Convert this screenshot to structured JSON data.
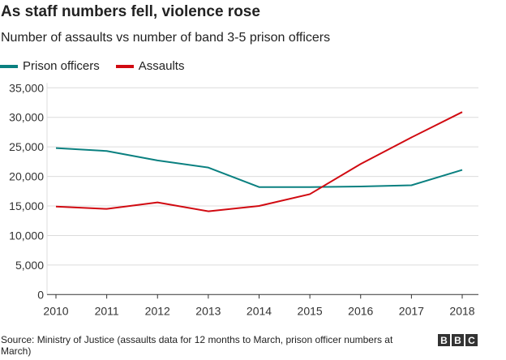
{
  "chart_data": {
    "type": "line",
    "title": "As staff numbers fell, violence rose",
    "subtitle": "Number of assaults vs number of band 3-5 prison officers",
    "x": [
      "2010",
      "2011",
      "2012",
      "2013",
      "2014",
      "2015",
      "2016",
      "2017",
      "2018"
    ],
    "series": [
      {
        "name": "Prison officers",
        "color": "#0a8080",
        "values": [
          24800,
          24300,
          22700,
          21500,
          18200,
          18200,
          18300,
          18500,
          21100
        ]
      },
      {
        "name": "Assaults",
        "color": "#d10a11",
        "values": [
          14900,
          14500,
          15600,
          14100,
          15000,
          17000,
          22100,
          26600,
          30900
        ]
      }
    ],
    "ylim": [
      0,
      35000
    ],
    "yticks": [
      "0",
      "5,000",
      "10,000",
      "15,000",
      "20,000",
      "25,000",
      "30,000",
      "35,000"
    ],
    "ytick_values": [
      0,
      5000,
      10000,
      15000,
      20000,
      25000,
      30000,
      35000
    ],
    "grid": true,
    "legend_position": "top-left",
    "source": "Source: Ministry of Justice (assaults data for 12 months to March, prison officer numbers at March)",
    "logo": "BBC"
  }
}
